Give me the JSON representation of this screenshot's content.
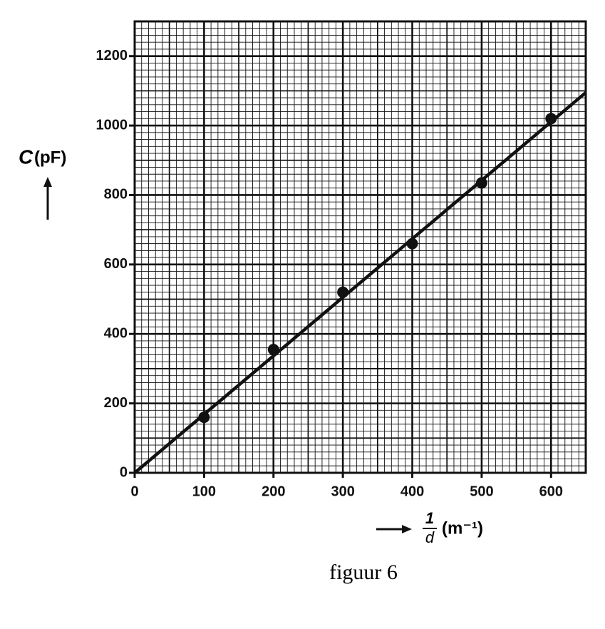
{
  "chart_data": {
    "type": "scatter",
    "ylabel": {
      "symbol": "C",
      "unit": "(pF)"
    },
    "xlabel": {
      "numerator": "1",
      "denominator": "d",
      "unit": "(m⁻¹)"
    },
    "caption": "figuur 6",
    "xlim": [
      0,
      650
    ],
    "ylim": [
      0,
      1300
    ],
    "xticks": [
      0,
      100,
      200,
      300,
      400,
      500,
      600
    ],
    "yticks": [
      0,
      200,
      400,
      600,
      800,
      1000,
      1200
    ],
    "grid": true,
    "xmid": 50,
    "ymid": 100,
    "xminor": 10,
    "yminor": 20,
    "color": "#111111",
    "series": [
      {
        "type": "scatter",
        "x": [
          100,
          200,
          300,
          400,
          500,
          600
        ],
        "values": [
          160,
          355,
          520,
          660,
          835,
          1020
        ]
      },
      {
        "type": "line",
        "x": [
          0,
          650
        ],
        "values": [
          0,
          1095
        ]
      }
    ]
  }
}
